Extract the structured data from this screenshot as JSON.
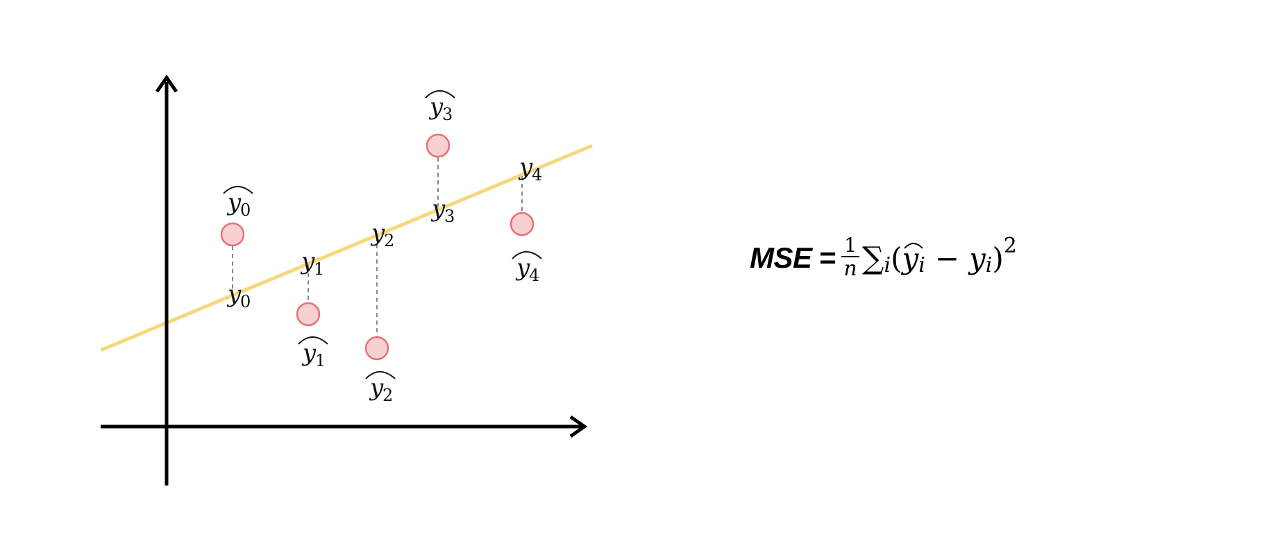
{
  "diagram": {
    "points": [
      {
        "label_base": "y",
        "subscript": "0"
      },
      {
        "label_base": "y",
        "subscript": "1"
      },
      {
        "label_base": "y",
        "subscript": "2"
      },
      {
        "label_base": "y",
        "subscript": "3"
      },
      {
        "label_base": "y",
        "subscript": "4"
      }
    ],
    "colors": {
      "axis": "#000000",
      "fit_line": "#f6d77a",
      "point_fill": "#f8d0d1",
      "point_stroke": "#e57373",
      "residual": "#7a7a7a"
    }
  },
  "formula": {
    "label": "MSE",
    "equals": "=",
    "frac_num": "1",
    "frac_den": "n",
    "sum": "∑",
    "sum_sub": "i",
    "open_paren": "(",
    "yhat": "y",
    "yhat_sub": "i",
    "minus": "−",
    "y": "y",
    "y_sub": "i",
    "close_paren": ")",
    "power": "2"
  }
}
